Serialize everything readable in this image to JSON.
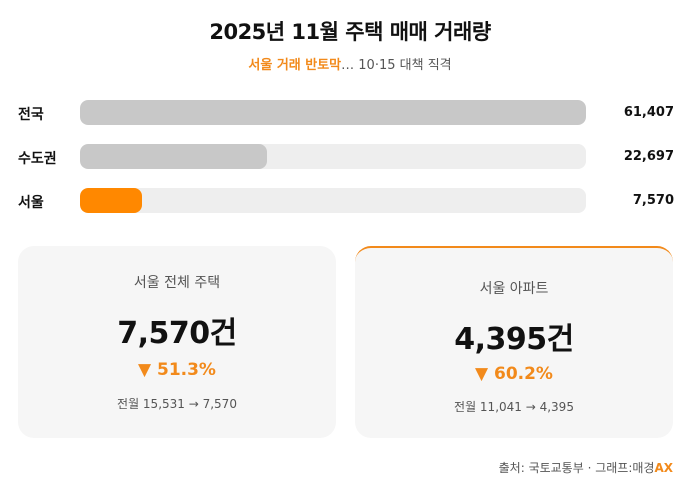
{
  "title": "2025년 11월 주택 매매 거래량",
  "subtitle": {
    "highlight": "서울 거래 반토막",
    "rest": "… 10·15 대책 직격"
  },
  "chart_data": {
    "type": "bar",
    "orientation": "horizontal",
    "categories": [
      "전국",
      "수도권",
      "서울"
    ],
    "values": [
      61407,
      22697,
      7570
    ],
    "value_labels": [
      "61,407",
      "22,697",
      "7,570"
    ],
    "colors": [
      "#c8c8c8",
      "#c8c8c8",
      "#ff8800"
    ],
    "track_color": "#eeeeee",
    "xlim": [
      0,
      61407
    ]
  },
  "cards": [
    {
      "label": "서울 전체 주택",
      "value": "7,570건",
      "change": "▼ 51.3%",
      "prev": "전월 15,531 → 7,570"
    },
    {
      "label": "서울 아파트",
      "value": "4,395건",
      "change": "▼ 60.2%",
      "prev": "전월 11,041 → 4,395"
    }
  ],
  "source": {
    "text": "출처: 국토교통부 · 그래프:매경",
    "brand": "AX"
  },
  "colors": {
    "accent": "#f28a1b",
    "bar_gray": "#c8c8c8",
    "card_bg": "#f6f6f6"
  }
}
